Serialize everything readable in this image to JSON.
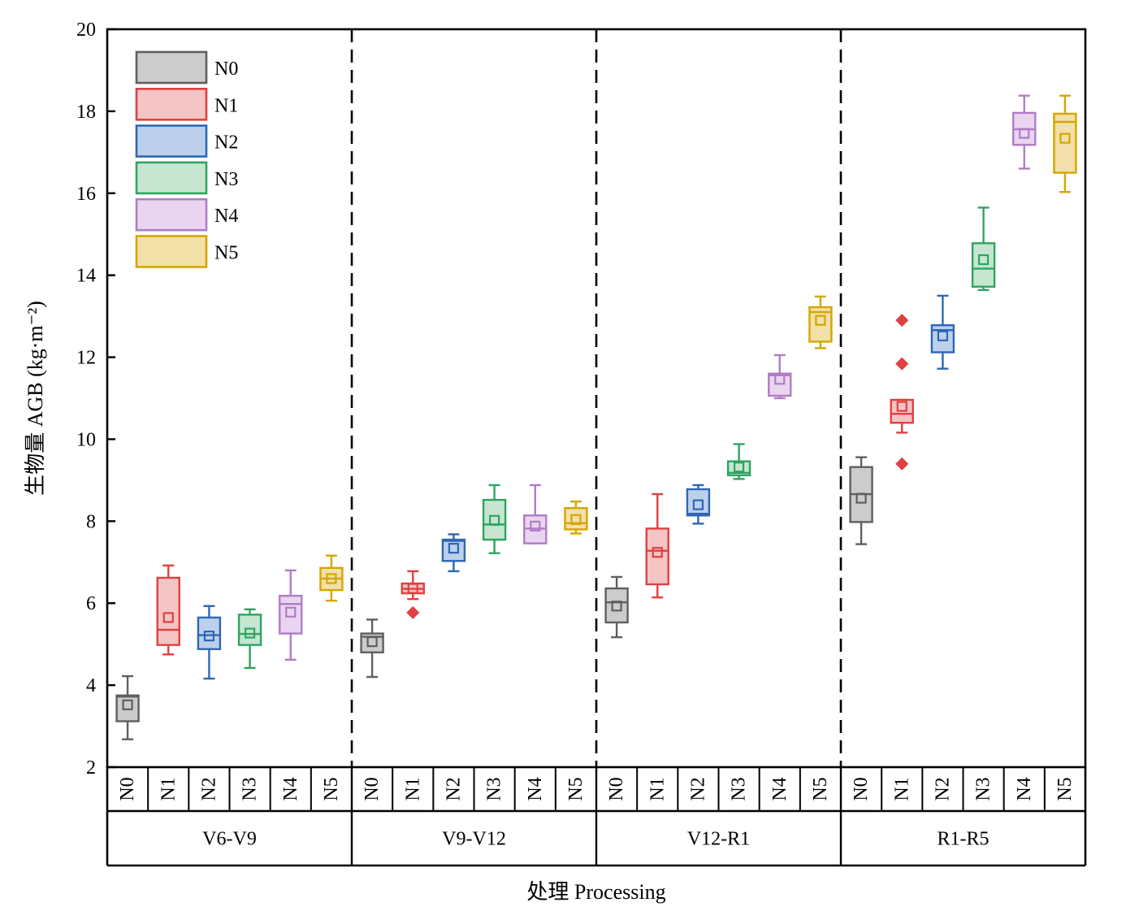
{
  "chart_data": {
    "type": "box",
    "ylabel": "生物量 AGB (kg·m⁻²)",
    "xlabel": "处理 Processing",
    "ylim": [
      2,
      20
    ],
    "yticks": [
      2,
      4,
      6,
      8,
      10,
      12,
      14,
      16,
      18,
      20
    ],
    "grid": false,
    "legend_position": "top-left",
    "groups": [
      "V6-V9",
      "V9-V12",
      "V12-R1",
      "R1-R5"
    ],
    "treatments": [
      "N0",
      "N1",
      "N2",
      "N3",
      "N4",
      "N5"
    ],
    "series": [
      {
        "name": "N0",
        "color": "#5f5f5f",
        "fill": "#cccccc"
      },
      {
        "name": "N1",
        "color": "#e04040",
        "fill": "#f5c4c4"
      },
      {
        "name": "N2",
        "color": "#2f66b5",
        "fill": "#bcd0ec"
      },
      {
        "name": "N3",
        "color": "#2ea460",
        "fill": "#c6e6d2"
      },
      {
        "name": "N4",
        "color": "#b07cc6",
        "fill": "#ead5f0"
      },
      {
        "name": "N5",
        "color": "#d4a600",
        "fill": "#f1e0a8"
      }
    ],
    "boxes": [
      {
        "group": "V6-V9",
        "treatment": "N0",
        "min": 2.68,
        "q1": 3.12,
        "median": 3.72,
        "q3": 3.75,
        "max": 4.22,
        "mean": 3.52,
        "outliers": []
      },
      {
        "group": "V6-V9",
        "treatment": "N1",
        "min": 4.75,
        "q1": 4.98,
        "median": 5.35,
        "q3": 6.62,
        "max": 6.92,
        "mean": 5.65,
        "outliers": []
      },
      {
        "group": "V6-V9",
        "treatment": "N2",
        "min": 4.16,
        "q1": 4.88,
        "median": 5.22,
        "q3": 5.65,
        "max": 5.93,
        "mean": 5.2,
        "outliers": []
      },
      {
        "group": "V6-V9",
        "treatment": "N3",
        "min": 4.42,
        "q1": 4.98,
        "median": 5.25,
        "q3": 5.72,
        "max": 5.85,
        "mean": 5.27,
        "outliers": []
      },
      {
        "group": "V6-V9",
        "treatment": "N4",
        "min": 4.62,
        "q1": 5.26,
        "median": 5.98,
        "q3": 6.18,
        "max": 6.8,
        "mean": 5.78,
        "outliers": []
      },
      {
        "group": "V6-V9",
        "treatment": "N5",
        "min": 6.06,
        "q1": 6.32,
        "median": 6.6,
        "q3": 6.86,
        "max": 7.16,
        "mean": 6.6,
        "outliers": []
      },
      {
        "group": "V9-V12",
        "treatment": "N0",
        "min": 4.2,
        "q1": 4.8,
        "median": 5.18,
        "q3": 5.26,
        "max": 5.6,
        "mean": 5.06,
        "outliers": []
      },
      {
        "group": "V9-V12",
        "treatment": "N1",
        "min": 6.1,
        "q1": 6.24,
        "median": 6.35,
        "q3": 6.48,
        "max": 6.78,
        "mean": 6.36,
        "outliers": [
          5.77
        ]
      },
      {
        "group": "V9-V12",
        "treatment": "N2",
        "min": 6.78,
        "q1": 7.03,
        "median": 7.52,
        "q3": 7.55,
        "max": 7.68,
        "mean": 7.34,
        "outliers": []
      },
      {
        "group": "V9-V12",
        "treatment": "N3",
        "min": 7.22,
        "q1": 7.55,
        "median": 7.92,
        "q3": 8.52,
        "max": 8.88,
        "mean": 8.02,
        "outliers": []
      },
      {
        "group": "V9-V12",
        "treatment": "N4",
        "min": 7.46,
        "q1": 7.46,
        "median": 7.82,
        "q3": 8.14,
        "max": 8.88,
        "mean": 7.88,
        "outliers": []
      },
      {
        "group": "V9-V12",
        "treatment": "N5",
        "min": 7.7,
        "q1": 7.8,
        "median": 7.95,
        "q3": 8.32,
        "max": 8.48,
        "mean": 8.04,
        "outliers": []
      },
      {
        "group": "V12-R1",
        "treatment": "N0",
        "min": 5.17,
        "q1": 5.53,
        "median": 6.02,
        "q3": 6.36,
        "max": 6.64,
        "mean": 5.93,
        "outliers": []
      },
      {
        "group": "V12-R1",
        "treatment": "N1",
        "min": 6.14,
        "q1": 6.46,
        "median": 7.28,
        "q3": 7.82,
        "max": 8.66,
        "mean": 7.24,
        "outliers": []
      },
      {
        "group": "V12-R1",
        "treatment": "N2",
        "min": 7.94,
        "q1": 8.14,
        "median": 8.18,
        "q3": 8.78,
        "max": 8.88,
        "mean": 8.4,
        "outliers": []
      },
      {
        "group": "V12-R1",
        "treatment": "N3",
        "min": 9.03,
        "q1": 9.12,
        "median": 9.18,
        "q3": 9.46,
        "max": 9.88,
        "mean": 9.32,
        "outliers": []
      },
      {
        "group": "V12-R1",
        "treatment": "N4",
        "min": 11.0,
        "q1": 11.06,
        "median": 11.56,
        "q3": 11.6,
        "max": 12.05,
        "mean": 11.46,
        "outliers": []
      },
      {
        "group": "V12-R1",
        "treatment": "N5",
        "min": 12.22,
        "q1": 12.38,
        "median": 13.1,
        "q3": 13.22,
        "max": 13.48,
        "mean": 12.9,
        "outliers": []
      },
      {
        "group": "R1-R5",
        "treatment": "N0",
        "min": 7.44,
        "q1": 7.98,
        "median": 8.66,
        "q3": 9.32,
        "max": 9.56,
        "mean": 8.56,
        "outliers": []
      },
      {
        "group": "R1-R5",
        "treatment": "N1",
        "min": 10.16,
        "q1": 10.4,
        "median": 10.62,
        "q3": 10.96,
        "max": 10.96,
        "mean": 10.8,
        "outliers": [
          12.9,
          11.84,
          9.4
        ]
      },
      {
        "group": "R1-R5",
        "treatment": "N2",
        "min": 11.72,
        "q1": 12.12,
        "median": 12.66,
        "q3": 12.78,
        "max": 13.5,
        "mean": 12.52,
        "outliers": []
      },
      {
        "group": "R1-R5",
        "treatment": "N3",
        "min": 13.64,
        "q1": 13.72,
        "median": 14.16,
        "q3": 14.78,
        "max": 15.65,
        "mean": 14.38,
        "outliers": []
      },
      {
        "group": "R1-R5",
        "treatment": "N4",
        "min": 16.6,
        "q1": 17.18,
        "median": 17.56,
        "q3": 17.96,
        "max": 18.38,
        "mean": 17.46,
        "outliers": []
      },
      {
        "group": "R1-R5",
        "treatment": "N5",
        "min": 16.03,
        "q1": 16.5,
        "median": 17.74,
        "q3": 17.94,
        "max": 18.38,
        "mean": 17.34,
        "outliers": []
      }
    ]
  }
}
